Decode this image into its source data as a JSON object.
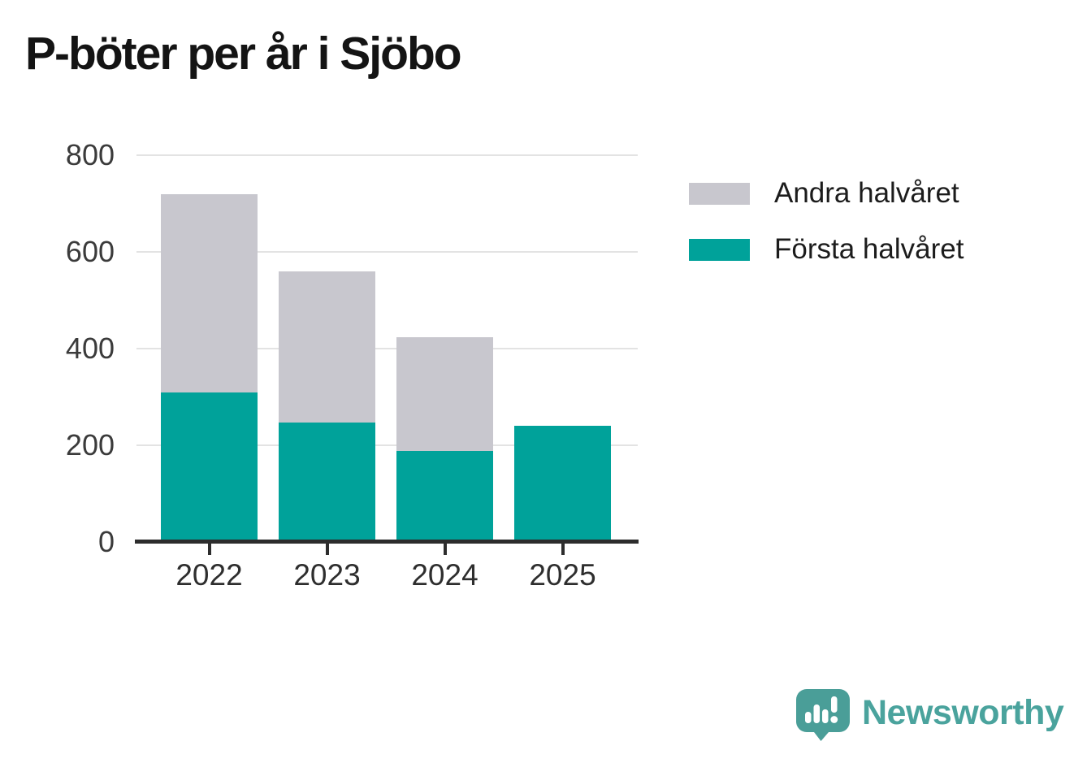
{
  "chart_data": {
    "type": "bar",
    "stacked": true,
    "title": "P-böter per år i Sjöbo",
    "categories": [
      "2022",
      "2023",
      "2024",
      "2025"
    ],
    "series": [
      {
        "name": "Första halvåret",
        "color": "#00a29a",
        "values": [
          310,
          247,
          188,
          240
        ]
      },
      {
        "name": "Andra halvåret",
        "color": "#c8c7ce",
        "values": [
          410,
          313,
          235,
          0
        ]
      }
    ],
    "totals": [
      720,
      560,
      423,
      240
    ],
    "xlabel": "",
    "ylabel": "",
    "ylim": [
      0,
      800
    ],
    "yticks": [
      0,
      200,
      400,
      600,
      800
    ],
    "grid": true,
    "legend_position": "right-top"
  },
  "legend": {
    "items": [
      {
        "label": "Andra halvåret",
        "color": "#c8c7ce"
      },
      {
        "label": "Första halvåret",
        "color": "#00a29a"
      }
    ]
  },
  "footer": {
    "brand": "Newsworthy",
    "brand_color": "#4aa39d",
    "icon_color": "#4a9e98"
  }
}
